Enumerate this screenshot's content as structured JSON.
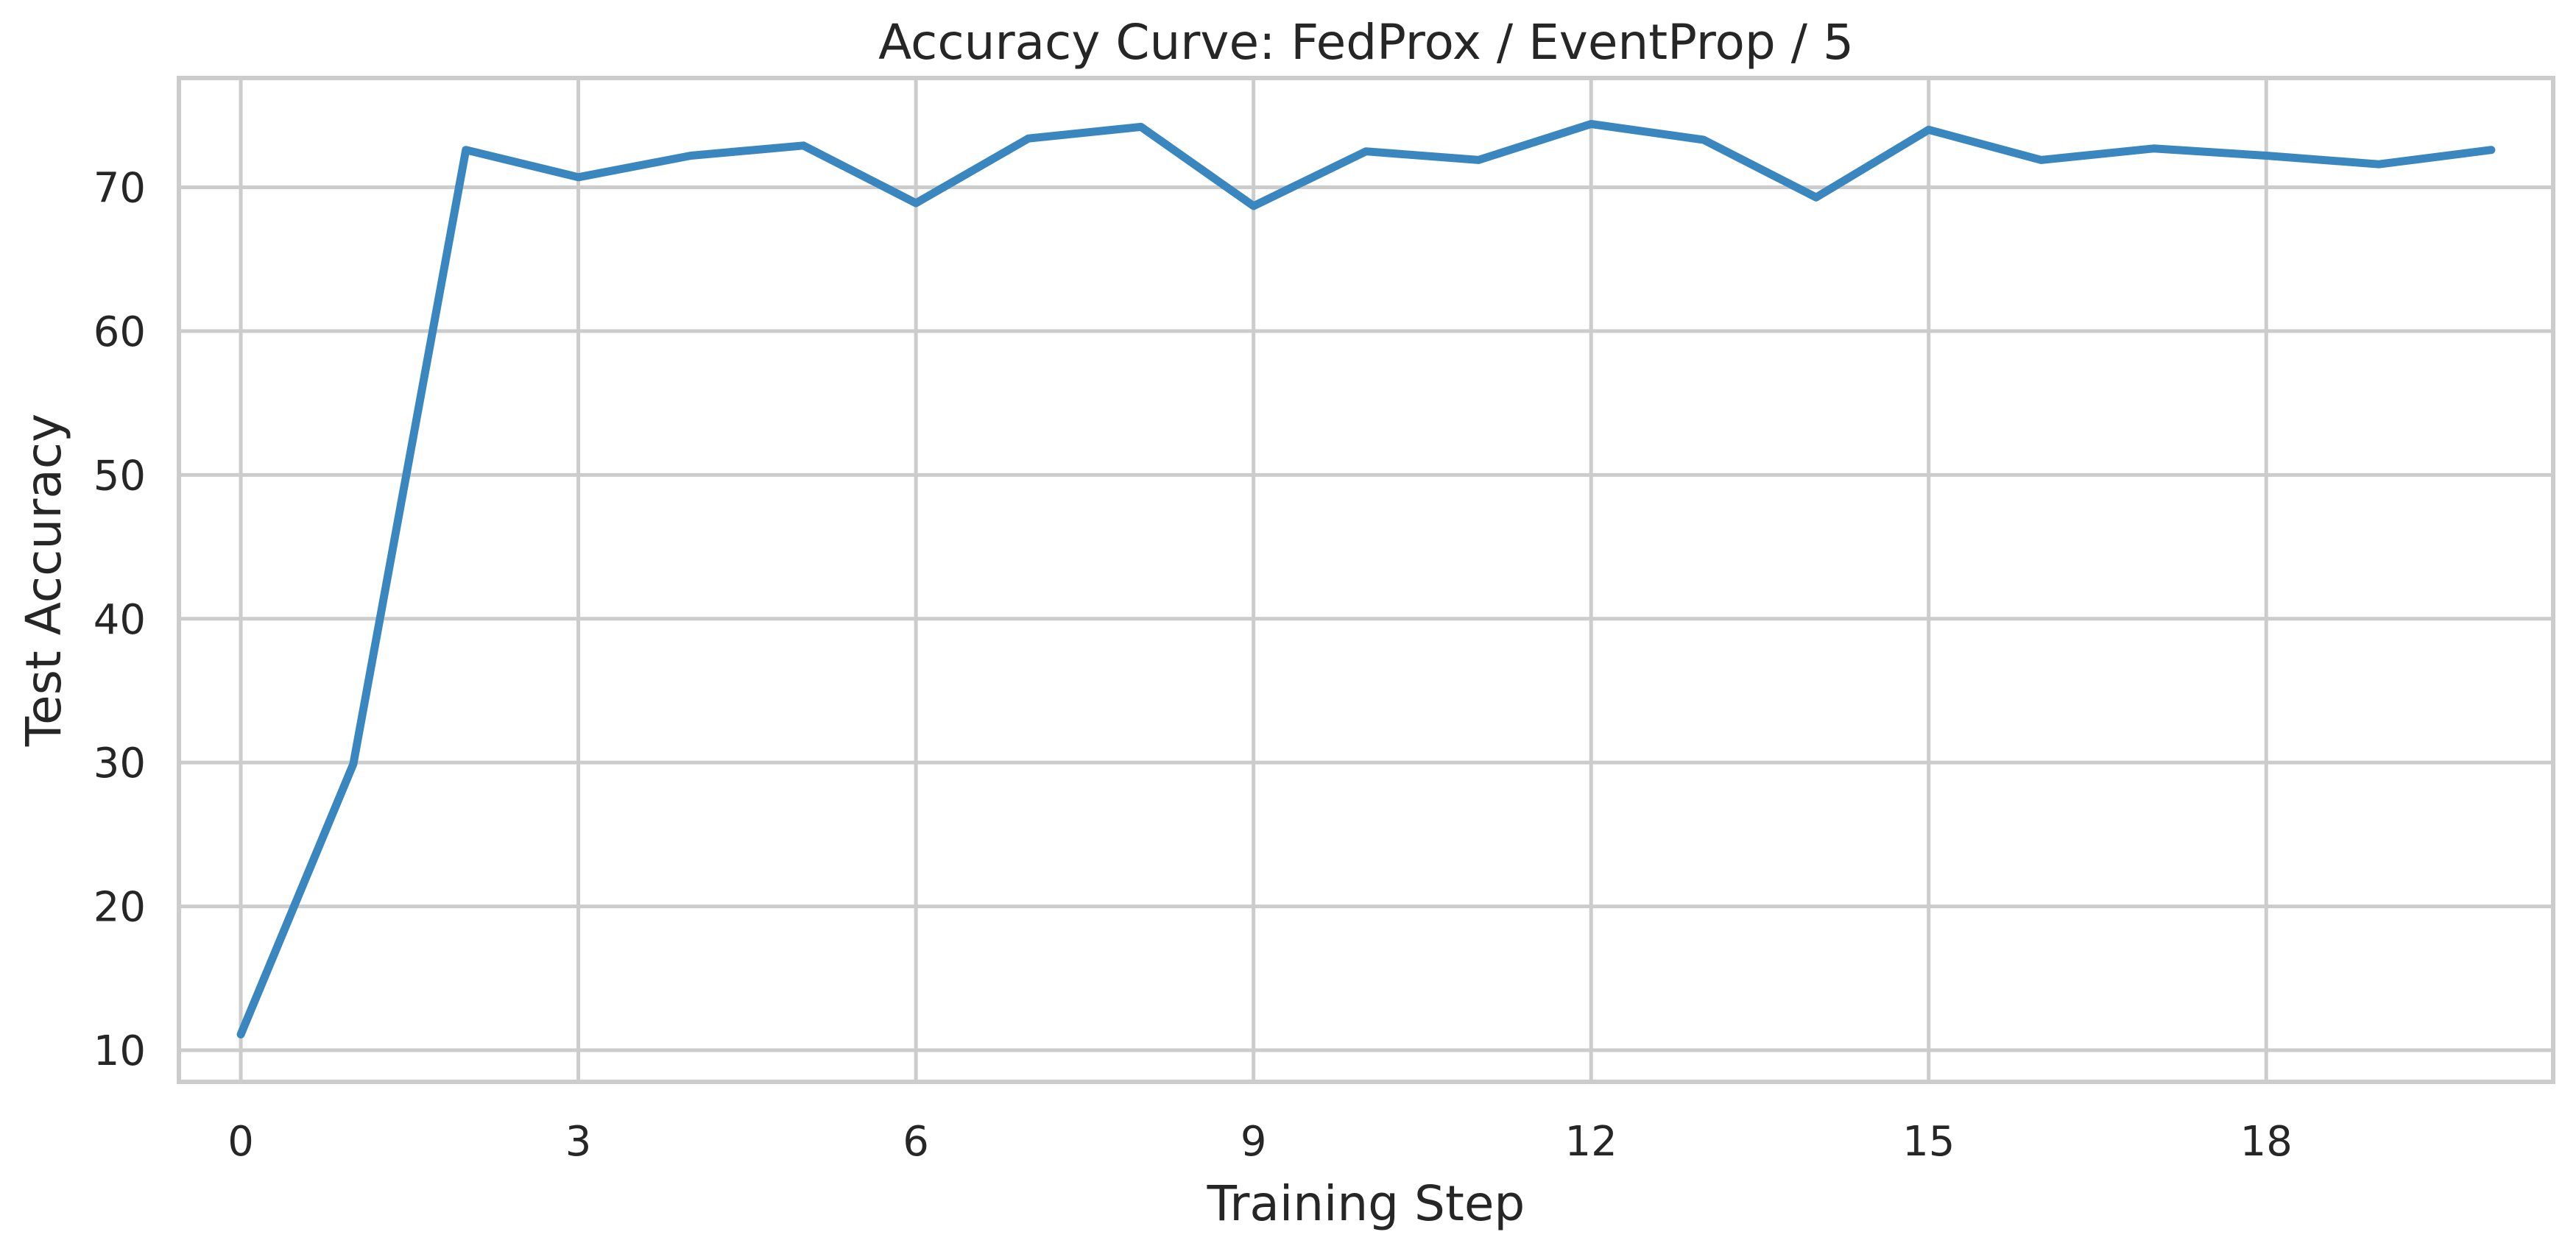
{
  "chart_data": {
    "type": "line",
    "title": "Accuracy Curve: FedProx / EventProp / 5",
    "xlabel": "Training Step",
    "ylabel": "Test Accuracy",
    "x": [
      0,
      1,
      2,
      3,
      4,
      5,
      6,
      7,
      8,
      9,
      10,
      11,
      12,
      13,
      14,
      15,
      16,
      17,
      18,
      19,
      20
    ],
    "series": [
      {
        "values": [
          11.1,
          29.9,
          72.6,
          70.7,
          72.2,
          72.9,
          68.9,
          73.4,
          74.2,
          68.7,
          72.5,
          71.9,
          74.4,
          73.3,
          69.3,
          74.0,
          71.9,
          72.7,
          72.2,
          71.6,
          72.6
        ],
        "color": "#3a86be"
      }
    ],
    "xlim": [
      -0.55,
      20.55
    ],
    "ylim": [
      7.8,
      77.6
    ],
    "xticks": [
      0,
      3,
      6,
      9,
      12,
      15,
      18
    ],
    "yticks": [
      10,
      20,
      30,
      40,
      50,
      60,
      70
    ],
    "grid": true,
    "grid_color": "#cccccc",
    "frame_color": "#cccccc"
  }
}
